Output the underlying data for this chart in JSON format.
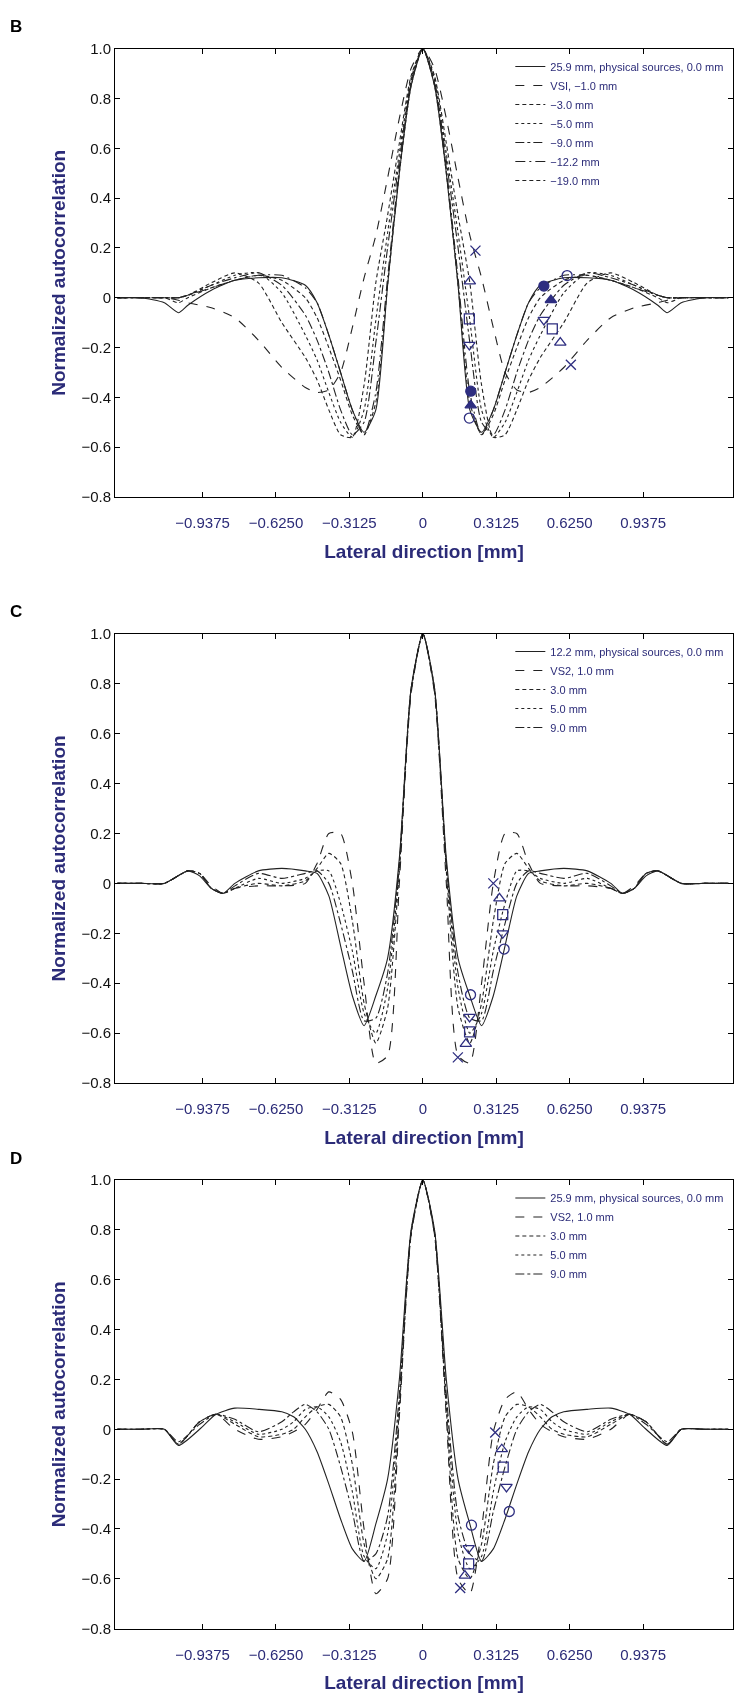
{
  "chart_data": [
    {
      "type": "line",
      "title": "B",
      "xlabel": "Lateral direction [mm]",
      "ylabel": "Normalized autocorrelation",
      "legend": "top right",
      "xlim": [
        -1.31,
        1.32
      ],
      "ylim": [
        -0.8,
        1.0
      ],
      "xticks": [
        {
          "value": -0.9375,
          "label": "−0.9375"
        },
        {
          "value": -0.625,
          "label": "−0.6250"
        },
        {
          "value": -0.3125,
          "label": "−0.3125"
        },
        0,
        0.3125,
        {
          "value": 0.625,
          "label": "0.6250"
        },
        0.9375
      ],
      "yticks": [
        {
          "value": -0.8,
          "label": "−0.8"
        },
        {
          "value": -0.6,
          "label": "−0.6"
        },
        {
          "value": -0.4,
          "label": "−0.4"
        },
        {
          "value": -0.2,
          "label": "−0.2"
        },
        0,
        0.2,
        0.4,
        0.6,
        0.8,
        {
          "value": 1.0,
          "label": "1.0"
        }
      ],
      "x": [
        -1.3,
        -1.2,
        -1.1,
        -1.04,
        -1.0,
        -0.9,
        -0.8,
        -0.7,
        -0.6,
        -0.5,
        -0.45,
        -0.4,
        -0.35,
        -0.3,
        -0.25,
        -0.2,
        -0.15,
        -0.1,
        -0.05,
        0,
        0.05,
        0.1,
        0.15,
        0.2,
        0.25,
        0.3,
        0.35,
        0.4,
        0.45,
        0.5,
        0.6,
        0.7,
        0.8,
        0.9,
        1.0,
        1.04,
        1.1,
        1.2,
        1.3
      ],
      "series": [
        {
          "name": "25.9 mm, physical sources, 0.0 mm",
          "color": "#222222",
          "line_style": "solid",
          "values": [
            0,
            0,
            -0.02,
            -0.06,
            -0.03,
            0.03,
            0.07,
            0.08,
            0.08,
            0.05,
            -0.02,
            -0.15,
            -0.3,
            -0.45,
            -0.54,
            -0.45,
            0.05,
            0.5,
            0.85,
            1.0,
            0.85,
            0.5,
            0.05,
            -0.45,
            -0.54,
            -0.45,
            -0.3,
            -0.15,
            -0.02,
            0.05,
            0.08,
            0.08,
            0.07,
            0.03,
            -0.03,
            -0.06,
            -0.02,
            0,
            0
          ]
        },
        {
          "name": "VSI, −1.0 mm",
          "color": "#222222",
          "line_style": "dashed",
          "values": [
            0,
            0,
            0,
            -0.01,
            -0.02,
            -0.04,
            -0.08,
            -0.17,
            -0.28,
            -0.36,
            -0.38,
            -0.37,
            -0.3,
            -0.12,
            0.08,
            0.25,
            0.48,
            0.72,
            0.92,
            1.0,
            0.92,
            0.72,
            0.48,
            0.25,
            0.08,
            -0.12,
            -0.3,
            -0.37,
            -0.38,
            -0.36,
            -0.28,
            -0.17,
            -0.08,
            -0.04,
            -0.02,
            -0.01,
            0,
            0,
            0
          ]
        },
        {
          "name": "−3.0 mm",
          "color": "#222222",
          "line_style": "shortdash",
          "values": [
            0,
            0,
            0,
            0,
            0.01,
            0.06,
            0.1,
            0.06,
            -0.1,
            -0.24,
            -0.33,
            -0.45,
            -0.55,
            -0.56,
            -0.35,
            0.06,
            0.33,
            0.62,
            0.89,
            1.0,
            0.89,
            0.62,
            0.33,
            0.06,
            -0.35,
            -0.56,
            -0.55,
            -0.45,
            -0.33,
            -0.24,
            -0.1,
            0.06,
            0.1,
            0.06,
            0.01,
            0,
            0,
            0,
            0
          ]
        },
        {
          "name": "−5.0 mm",
          "color": "#222222",
          "line_style": "dotted",
          "values": [
            0,
            0,
            0,
            0,
            0.01,
            0.05,
            0.09,
            0.1,
            0.02,
            -0.15,
            -0.25,
            -0.38,
            -0.5,
            -0.56,
            -0.45,
            -0.09,
            0.26,
            0.58,
            0.88,
            1.0,
            0.88,
            0.58,
            0.26,
            -0.09,
            -0.45,
            -0.56,
            -0.5,
            -0.38,
            -0.25,
            -0.15,
            0.02,
            0.1,
            0.09,
            0.05,
            0.01,
            0,
            0,
            0,
            0
          ]
        },
        {
          "name": "−9.0 mm",
          "color": "#222222",
          "line_style": "dashdot",
          "values": [
            0,
            0,
            0,
            0,
            0.01,
            0.05,
            0.08,
            0.1,
            0.05,
            -0.07,
            -0.17,
            -0.3,
            -0.45,
            -0.55,
            -0.5,
            -0.18,
            0.2,
            0.55,
            0.87,
            1.0,
            0.87,
            0.55,
            0.2,
            -0.18,
            -0.5,
            -0.55,
            -0.45,
            -0.3,
            -0.17,
            -0.07,
            0.05,
            0.1,
            0.08,
            0.05,
            0.01,
            0,
            0,
            0,
            0
          ]
        },
        {
          "name": "−12.2 mm",
          "color": "#222222",
          "line_style": "longdashdot",
          "values": [
            0,
            0,
            0,
            0,
            0.01,
            0.04,
            0.07,
            0.09,
            0.09,
            0.04,
            -0.02,
            -0.15,
            -0.3,
            -0.45,
            -0.55,
            -0.38,
            0.08,
            0.52,
            0.86,
            1.0,
            0.86,
            0.52,
            0.08,
            -0.38,
            -0.55,
            -0.45,
            -0.3,
            -0.15,
            -0.02,
            0.04,
            0.09,
            0.09,
            0.07,
            0.04,
            0.01,
            0,
            0,
            0,
            0
          ]
        },
        {
          "name": "−19.0 mm",
          "color": "#222222",
          "line_style": "shortdash",
          "values": [
            0,
            0,
            0,
            -0.02,
            0.0,
            0.04,
            0.07,
            0.09,
            0.07,
            0.0,
            -0.08,
            -0.2,
            -0.33,
            -0.47,
            -0.55,
            -0.42,
            0.05,
            0.5,
            0.85,
            1.0,
            0.85,
            0.5,
            0.05,
            -0.42,
            -0.55,
            -0.47,
            -0.33,
            -0.2,
            -0.08,
            0.0,
            0.07,
            0.09,
            0.07,
            0.04,
            0.0,
            -0.02,
            0,
            0,
            0
          ]
        },
        {
          "type": "scatter",
          "color": "#2e2e80",
          "marker": "circle-open",
          "x": [
            0.198,
            0.614
          ],
          "values": [
            -0.483,
            0.089
          ]
        },
        {
          "type": "scatter",
          "color": "#2e2e80",
          "marker": "x",
          "x": [
            0.224,
            0.63
          ],
          "values": [
            0.189,
            -0.269
          ]
        },
        {
          "type": "scatter",
          "color": "#2e2e80",
          "marker": "triangle-open",
          "x": [
            0.2,
            0.585
          ],
          "values": [
            0.066,
            -0.18
          ]
        },
        {
          "type": "scatter",
          "color": "#2e2e80",
          "marker": "square-open",
          "x": [
            0.198,
            0.551
          ],
          "values": [
            -0.085,
            -0.125
          ]
        },
        {
          "type": "scatter",
          "color": "#2e2e80",
          "marker": "triangle-down-open",
          "x": [
            0.198,
            0.515
          ],
          "values": [
            -0.189,
            -0.089
          ]
        },
        {
          "type": "scatter",
          "color": "#2e2e80",
          "marker": "circle",
          "x": [
            0.204,
            0.515
          ],
          "values": [
            -0.375,
            0.047
          ]
        },
        {
          "type": "scatter",
          "color": "#2e2e80",
          "marker": "triangle",
          "x": [
            0.204,
            0.545
          ],
          "values": [
            -0.432,
            -0.009
          ]
        }
      ]
    },
    {
      "type": "line",
      "title": "C",
      "xlabel": "Lateral direction [mm]",
      "ylabel": "Normalized autocorrelation",
      "legend": "top right",
      "xlim": [
        -1.31,
        1.32
      ],
      "ylim": [
        -0.8,
        1.0
      ],
      "xticks": [
        {
          "value": -0.9375,
          "label": "−0.9375"
        },
        {
          "value": -0.625,
          "label": "−0.6250"
        },
        {
          "value": -0.3125,
          "label": "−0.3125"
        },
        0,
        0.3125,
        {
          "value": 0.625,
          "label": "0.6250"
        },
        0.9375
      ],
      "yticks": [
        {
          "value": -0.8,
          "label": "−0.8"
        },
        {
          "value": -0.6,
          "label": "−0.6"
        },
        {
          "value": -0.4,
          "label": "−0.4"
        },
        {
          "value": -0.2,
          "label": "−0.2"
        },
        0,
        0.2,
        0.4,
        0.6,
        0.8,
        {
          "value": 1.0,
          "label": "1.0"
        }
      ],
      "x": [
        -1.3,
        -1.2,
        -1.1,
        -1.0,
        -0.95,
        -0.9,
        -0.85,
        -0.8,
        -0.7,
        -0.6,
        -0.5,
        -0.45,
        -0.4,
        -0.35,
        -0.3,
        -0.25,
        -0.2,
        -0.15,
        -0.1,
        -0.05,
        0,
        0.05,
        0.1,
        0.15,
        0.2,
        0.25,
        0.3,
        0.35,
        0.4,
        0.45,
        0.5,
        0.6,
        0.7,
        0.8,
        0.85,
        0.9,
        0.95,
        1.0,
        1.1,
        1.2,
        1.3
      ],
      "series": [
        {
          "name": "12.2 mm, physical sources, 0.0 mm",
          "color": "#222222",
          "line_style": "solid",
          "values": [
            0,
            0,
            0,
            0.05,
            0.03,
            -0.02,
            -0.04,
            0.0,
            0.05,
            0.06,
            0.05,
            0.04,
            -0.05,
            -0.25,
            -0.45,
            -0.57,
            -0.45,
            -0.3,
            0.1,
            0.78,
            1.0,
            0.78,
            0.1,
            -0.3,
            -0.45,
            -0.57,
            -0.45,
            -0.25,
            -0.05,
            0.04,
            0.05,
            0.06,
            0.05,
            0.0,
            -0.04,
            -0.02,
            0.03,
            0.05,
            0,
            0,
            0
          ]
        },
        {
          "name": "VS2, 1.0 mm",
          "color": "#222222",
          "line_style": "dashed",
          "values": [
            0,
            0,
            0,
            0.05,
            0.04,
            -0.01,
            -0.04,
            -0.02,
            -0.01,
            -0.01,
            0.0,
            0.08,
            0.2,
            0.2,
            0.0,
            -0.4,
            -0.72,
            -0.69,
            0.0,
            0.76,
            1.0,
            0.76,
            0.0,
            -0.69,
            -0.72,
            -0.4,
            0.0,
            0.2,
            0.2,
            0.08,
            0.0,
            -0.01,
            -0.01,
            -0.02,
            -0.04,
            -0.01,
            0.04,
            0.05,
            0,
            0,
            0
          ]
        },
        {
          "name": "3.0 mm",
          "color": "#222222",
          "line_style": "shortdash",
          "values": [
            0,
            0,
            0,
            0.05,
            0.04,
            -0.02,
            -0.04,
            -0.02,
            0.0,
            -0.01,
            0.01,
            0.06,
            0.12,
            0.08,
            -0.15,
            -0.48,
            -0.64,
            -0.5,
            0.05,
            0.77,
            1.0,
            0.77,
            0.05,
            -0.5,
            -0.64,
            -0.48,
            -0.15,
            0.08,
            0.12,
            0.06,
            0.01,
            -0.01,
            0.0,
            -0.02,
            -0.04,
            -0.02,
            0.04,
            0.05,
            0,
            0,
            0
          ]
        },
        {
          "name": "5.0 mm",
          "color": "#222222",
          "line_style": "dotted",
          "values": [
            0,
            0,
            0,
            0.05,
            0.04,
            -0.02,
            -0.04,
            -0.02,
            0.02,
            0.0,
            0.02,
            0.05,
            0.05,
            -0.08,
            -0.27,
            -0.52,
            -0.6,
            -0.42,
            0.07,
            0.77,
            1.0,
            0.77,
            0.07,
            -0.42,
            -0.6,
            -0.52,
            -0.27,
            -0.08,
            0.05,
            0.05,
            0.02,
            0.0,
            0.02,
            -0.02,
            -0.04,
            -0.02,
            0.04,
            0.05,
            0,
            0,
            0
          ]
        },
        {
          "name": "9.0 mm",
          "color": "#222222",
          "line_style": "dashdot",
          "values": [
            0,
            0,
            0,
            0.05,
            0.04,
            -0.02,
            -0.04,
            -0.01,
            0.04,
            0.02,
            0.04,
            0.05,
            0.0,
            -0.16,
            -0.35,
            -0.55,
            -0.54,
            -0.36,
            0.08,
            0.78,
            1.0,
            0.78,
            0.08,
            -0.36,
            -0.54,
            -0.55,
            -0.35,
            -0.16,
            0.0,
            0.05,
            0.04,
            0.02,
            0.04,
            -0.01,
            -0.04,
            -0.02,
            0.04,
            0.05,
            0,
            0,
            0
          ]
        },
        {
          "type": "scatter",
          "color": "#2e2e80",
          "marker": "circle-open",
          "x": [
            0.203,
            0.346
          ],
          "values": [
            -0.446,
            -0.263
          ]
        },
        {
          "type": "scatter",
          "color": "#2e2e80",
          "marker": "x",
          "x": [
            0.149,
            0.3
          ],
          "values": [
            -0.697,
            0.0
          ]
        },
        {
          "type": "scatter",
          "color": "#2e2e80",
          "marker": "triangle-open",
          "x": [
            0.183,
            0.326
          ],
          "values": [
            -0.643,
            -0.06
          ]
        },
        {
          "type": "scatter",
          "color": "#2e2e80",
          "marker": "square-open",
          "x": [
            0.199,
            0.34
          ],
          "values": [
            -0.595,
            -0.125
          ]
        },
        {
          "type": "scatter",
          "color": "#2e2e80",
          "marker": "triangle-down-open",
          "x": [
            0.199,
            0.34
          ],
          "values": [
            -0.535,
            -0.2
          ]
        }
      ]
    },
    {
      "type": "line",
      "title": "D",
      "xlabel": "Lateral direction [mm]",
      "ylabel": "Normalized autocorrelation",
      "legend": "top right",
      "xlim": [
        -1.31,
        1.32
      ],
      "ylim": [
        -0.8,
        1.0
      ],
      "xticks": [
        {
          "value": -0.9375,
          "label": "−0.9375"
        },
        {
          "value": -0.625,
          "label": "−0.6250"
        },
        {
          "value": -0.3125,
          "label": "−0.3125"
        },
        0,
        0.3125,
        {
          "value": 0.625,
          "label": "0.6250"
        },
        0.9375
      ],
      "yticks": [
        {
          "value": -0.8,
          "label": "−0.8"
        },
        {
          "value": -0.6,
          "label": "−0.6"
        },
        {
          "value": -0.4,
          "label": "−0.4"
        },
        {
          "value": -0.2,
          "label": "−0.2"
        },
        0,
        0.2,
        0.4,
        0.6,
        0.8,
        {
          "value": 1.0,
          "label": "1.0"
        }
      ],
      "x": [
        -1.3,
        -1.2,
        -1.1,
        -1.04,
        -0.95,
        -0.88,
        -0.8,
        -0.7,
        -0.6,
        -0.55,
        -0.5,
        -0.45,
        -0.4,
        -0.35,
        -0.3,
        -0.25,
        -0.2,
        -0.15,
        -0.1,
        -0.05,
        0,
        0.05,
        0.1,
        0.15,
        0.2,
        0.25,
        0.3,
        0.35,
        0.4,
        0.45,
        0.5,
        0.55,
        0.6,
        0.7,
        0.8,
        0.88,
        0.95,
        1.04,
        1.1,
        1.2,
        1.3
      ],
      "series": [
        {
          "name": "25.9 mm, physical sources, 0.0 mm",
          "color": "#222222",
          "line_style": "solid",
          "values": [
            0,
            0,
            0,
            -0.065,
            0.0,
            0.06,
            0.085,
            0.08,
            0.07,
            0.05,
            0.0,
            -0.09,
            -0.22,
            -0.36,
            -0.48,
            -0.53,
            -0.38,
            -0.2,
            0.2,
            0.8,
            1.0,
            0.8,
            0.2,
            -0.2,
            -0.38,
            -0.53,
            -0.48,
            -0.36,
            -0.22,
            -0.09,
            0.0,
            0.05,
            0.07,
            0.08,
            0.085,
            0.06,
            0.0,
            -0.065,
            0,
            0,
            0
          ]
        },
        {
          "name": "VS2, 1.0 mm",
          "color": "#222222",
          "line_style": "dashed",
          "values": [
            0,
            0,
            0,
            -0.06,
            0.03,
            0.06,
            0.0,
            -0.04,
            -0.03,
            -0.01,
            0.02,
            0.08,
            0.15,
            0.12,
            -0.01,
            -0.4,
            -0.66,
            -0.6,
            0.05,
            0.78,
            1.0,
            0.78,
            0.05,
            -0.6,
            -0.66,
            -0.4,
            -0.01,
            0.12,
            0.15,
            0.08,
            0.02,
            -0.01,
            -0.03,
            -0.04,
            0.0,
            0.06,
            0.03,
            -0.06,
            0,
            0,
            0
          ]
        },
        {
          "name": "3.0 mm",
          "color": "#222222",
          "line_style": "shortdash",
          "values": [
            0,
            0,
            0,
            -0.06,
            0.03,
            0.06,
            0.02,
            -0.03,
            -0.02,
            0.0,
            0.05,
            0.09,
            0.1,
            0.05,
            -0.14,
            -0.46,
            -0.6,
            -0.52,
            0.08,
            0.78,
            1.0,
            0.78,
            0.08,
            -0.52,
            -0.6,
            -0.46,
            -0.14,
            0.05,
            0.1,
            0.09,
            0.05,
            0.0,
            -0.02,
            -0.03,
            0.02,
            0.06,
            0.03,
            -0.06,
            0,
            0,
            0
          ]
        },
        {
          "name": "5.0 mm",
          "color": "#222222",
          "line_style": "dotted",
          "values": [
            0,
            0,
            0,
            -0.06,
            0.03,
            0.06,
            0.03,
            -0.02,
            0.0,
            0.03,
            0.08,
            0.09,
            0.05,
            -0.05,
            -0.25,
            -0.51,
            -0.56,
            -0.42,
            0.1,
            0.79,
            1.0,
            0.79,
            0.1,
            -0.42,
            -0.56,
            -0.51,
            -0.25,
            -0.05,
            0.05,
            0.09,
            0.08,
            0.03,
            0.0,
            -0.02,
            0.03,
            0.06,
            0.03,
            -0.06,
            0,
            0,
            0
          ]
        },
        {
          "name": "9.0 mm",
          "color": "#222222",
          "line_style": "dashdot",
          "values": [
            0,
            0,
            0,
            -0.05,
            0.02,
            0.06,
            0.04,
            -0.01,
            0.03,
            0.07,
            0.1,
            0.07,
            0.0,
            -0.15,
            -0.33,
            -0.53,
            -0.5,
            -0.35,
            0.14,
            0.79,
            1.0,
            0.79,
            0.14,
            -0.35,
            -0.5,
            -0.53,
            -0.33,
            -0.15,
            0.0,
            0.07,
            0.1,
            0.07,
            0.03,
            -0.01,
            0.04,
            0.06,
            0.02,
            -0.05,
            0,
            0,
            0
          ]
        },
        {
          "type": "scatter",
          "color": "#2e2e80",
          "marker": "circle-open",
          "x": [
            0.207,
            0.368
          ],
          "values": [
            -0.385,
            -0.33
          ]
        },
        {
          "type": "scatter",
          "color": "#2e2e80",
          "marker": "x",
          "x": [
            0.159,
            0.308
          ],
          "values": [
            -0.637,
            -0.013
          ]
        },
        {
          "type": "scatter",
          "color": "#2e2e80",
          "marker": "triangle-open",
          "x": [
            0.179,
            0.336
          ],
          "values": [
            -0.587,
            -0.08
          ]
        },
        {
          "type": "scatter",
          "color": "#2e2e80",
          "marker": "square-open",
          "x": [
            0.195,
            0.342
          ],
          "values": [
            -0.54,
            -0.152
          ]
        },
        {
          "type": "scatter",
          "color": "#2e2e80",
          "marker": "triangle-down-open",
          "x": [
            0.195,
            0.356
          ],
          "values": [
            -0.477,
            -0.231
          ]
        }
      ]
    }
  ]
}
